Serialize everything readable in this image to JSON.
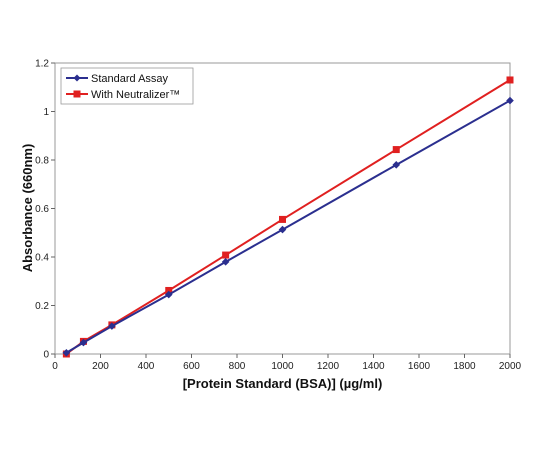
{
  "chart_data": {
    "type": "line",
    "title": "",
    "xlabel": "[Protein Standard (BSA)] (µg/ml)",
    "ylabel": "Absorbance (660nm)",
    "xlim": [
      0,
      2000
    ],
    "ylim": [
      0,
      1.2
    ],
    "xticks": [
      0,
      200,
      400,
      600,
      800,
      1000,
      1200,
      1400,
      1600,
      1800,
      2000
    ],
    "yticks": [
      0,
      0.2,
      0.4,
      0.6,
      0.8,
      1,
      1.2
    ],
    "xtick_labels": [
      "0",
      "200",
      "400",
      "600",
      "800",
      "1000",
      "1200",
      "1400",
      "1600",
      "1800",
      "2000"
    ],
    "ytick_labels": [
      "0",
      "0.2",
      "0.4",
      "0.6",
      "0.8",
      "1",
      "1.2"
    ],
    "grid": false,
    "legend_position": "top-left",
    "x": [
      50,
      125,
      250,
      500,
      750,
      1000,
      1500,
      2000
    ],
    "series": [
      {
        "name": "Standard Assay",
        "color": "#2b2f8f",
        "marker": "diamond",
        "values": [
          0.005,
          0.047,
          0.115,
          0.245,
          0.38,
          0.513,
          0.78,
          1.045
        ]
      },
      {
        "name": "With Neutralizer™",
        "color": "#e02020",
        "marker": "square",
        "values": [
          0.0,
          0.052,
          0.12,
          0.262,
          0.408,
          0.555,
          0.843,
          1.13
        ]
      }
    ]
  }
}
